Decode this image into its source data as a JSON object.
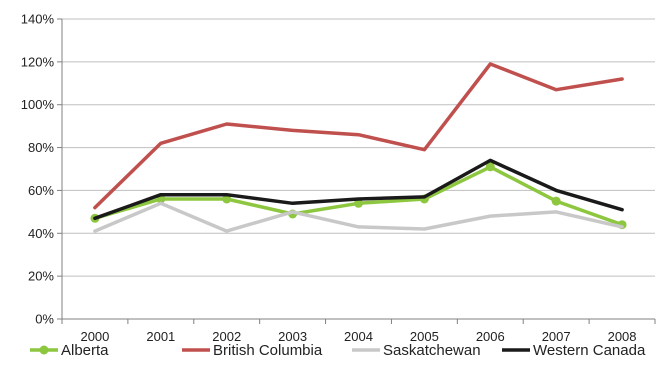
{
  "chart_data": {
    "type": "line",
    "title": "",
    "xlabel": "",
    "ylabel": "",
    "categories": [
      "2000",
      "2001",
      "2002",
      "2003",
      "2004",
      "2005",
      "2006",
      "2007",
      "2008"
    ],
    "ylim": [
      0,
      140
    ],
    "y_ticks": [
      "0%",
      "20%",
      "40%",
      "60%",
      "80%",
      "100%",
      "120%",
      "140%"
    ],
    "grid": true,
    "legend_position": "bottom",
    "series": [
      {
        "name": "Alberta",
        "color": "#8DC63F",
        "marker": "circle",
        "values": [
          47,
          56,
          56,
          49,
          54,
          56,
          71,
          55,
          44
        ]
      },
      {
        "name": "British Columbia",
        "color": "#C0504D",
        "marker": "none",
        "values": [
          52,
          82,
          91,
          88,
          86,
          79,
          119,
          107,
          112
        ]
      },
      {
        "name": "Saskatchewan",
        "color": "#C8C8C8",
        "marker": "none",
        "values": [
          41,
          54,
          41,
          50,
          43,
          42,
          48,
          50,
          43
        ]
      },
      {
        "name": "Western Canada",
        "color": "#1A1A1A",
        "marker": "none",
        "values": [
          47,
          58,
          58,
          54,
          56,
          57,
          74,
          60,
          51
        ]
      }
    ]
  }
}
